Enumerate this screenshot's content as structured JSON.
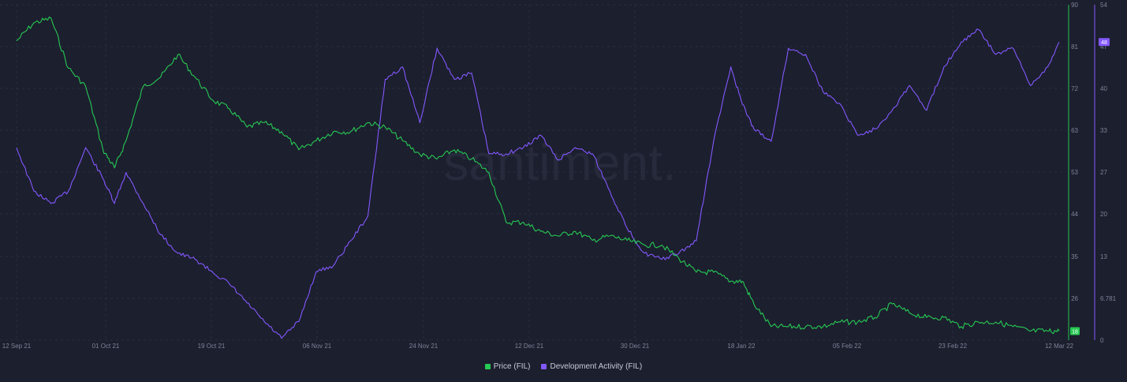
{
  "chart_data": {
    "type": "line",
    "watermark": "santiment.",
    "x_ticks": [
      "12 Sep 21",
      "01 Oct 21",
      "19 Oct 21",
      "06 Nov 21",
      "24 Nov 21",
      "12 Dec 21",
      "30 Dec 21",
      "18 Jan 22",
      "05 Feb 22",
      "23 Feb 22",
      "12 Mar 22"
    ],
    "price_axis": {
      "ticks": [
        "90",
        "81",
        "72",
        "63",
        "53",
        "44",
        "35",
        "26",
        "18"
      ],
      "ylim": [
        16,
        90
      ],
      "current_label": "18"
    },
    "dev_axis": {
      "ticks": [
        "54",
        "47",
        "40",
        "33",
        "27",
        "20",
        "13",
        "6.781",
        "0"
      ],
      "ylim": [
        0,
        54
      ],
      "current_label": "48"
    },
    "series": [
      {
        "name": "Price (FIL)",
        "color": "#26c953",
        "x": [
          "12 Sep 21",
          "15 Sep 21",
          "18 Sep 21",
          "21 Sep 21",
          "24 Sep 21",
          "27 Sep 21",
          "29 Sep 21",
          "01 Oct 21",
          "04 Oct 21",
          "07 Oct 21",
          "10 Oct 21",
          "13 Oct 21",
          "16 Oct 21",
          "19 Oct 21",
          "22 Oct 21",
          "25 Oct 21",
          "28 Oct 21",
          "31 Oct 21",
          "03 Nov 21",
          "06 Nov 21",
          "09 Nov 21",
          "12 Nov 21",
          "15 Nov 21",
          "18 Nov 21",
          "21 Nov 21",
          "24 Nov 21",
          "27 Nov 21",
          "30 Nov 21",
          "03 Dec 21",
          "06 Dec 21",
          "09 Dec 21",
          "12 Dec 21",
          "15 Dec 21",
          "18 Dec 21",
          "21 Dec 21",
          "24 Dec 21",
          "27 Dec 21",
          "30 Dec 21",
          "02 Jan 22",
          "05 Jan 22",
          "08 Jan 22",
          "11 Jan 22",
          "14 Jan 22",
          "16 Jan 22",
          "18 Jan 22",
          "21 Jan 22",
          "24 Jan 22",
          "27 Jan 22",
          "30 Jan 22",
          "02 Feb 22",
          "05 Feb 22",
          "08 Feb 22",
          "11 Feb 22",
          "14 Feb 22",
          "17 Feb 22",
          "20 Feb 22",
          "23 Feb 22",
          "26 Feb 22",
          "01 Mar 22",
          "04 Mar 22",
          "07 Mar 22",
          "10 Mar 22",
          "12 Mar 22"
        ],
        "values": [
          82,
          86,
          87,
          76,
          72,
          58,
          54,
          60,
          72,
          74,
          79,
          74,
          69,
          67,
          63,
          64,
          62,
          58,
          60,
          62,
          62,
          64,
          63,
          60,
          57,
          56,
          58,
          56,
          53,
          42,
          42,
          40,
          39,
          40,
          38,
          39,
          38,
          37,
          37,
          34,
          31,
          31,
          29,
          29,
          24,
          19,
          19,
          19,
          19,
          20,
          20,
          21,
          24,
          22,
          21,
          21,
          19,
          20,
          20,
          19,
          18,
          18,
          18
        ]
      },
      {
        "name": "Development Activity (FIL)",
        "color": "#8358ff",
        "x": [
          "12 Sep 21",
          "15 Sep 21",
          "18 Sep 21",
          "21 Sep 21",
          "24 Sep 21",
          "27 Sep 21",
          "29 Sep 21",
          "01 Oct 21",
          "04 Oct 21",
          "07 Oct 21",
          "10 Oct 21",
          "13 Oct 21",
          "16 Oct 21",
          "19 Oct 21",
          "22 Oct 21",
          "25 Oct 21",
          "28 Oct 21",
          "31 Oct 21",
          "03 Nov 21",
          "06 Nov 21",
          "09 Nov 21",
          "12 Nov 21",
          "15 Nov 21",
          "18 Nov 21",
          "21 Nov 21",
          "24 Nov 21",
          "27 Nov 21",
          "30 Nov 21",
          "03 Dec 21",
          "06 Dec 21",
          "09 Dec 21",
          "12 Dec 21",
          "15 Dec 21",
          "18 Dec 21",
          "21 Dec 21",
          "24 Dec 21",
          "27 Dec 21",
          "30 Dec 21",
          "02 Jan 22",
          "05 Jan 22",
          "08 Jan 22",
          "11 Jan 22",
          "14 Jan 22",
          "16 Jan 22",
          "18 Jan 22",
          "21 Jan 22",
          "24 Jan 22",
          "27 Jan 22",
          "30 Jan 22",
          "02 Feb 22",
          "05 Feb 22",
          "08 Feb 22",
          "11 Feb 22",
          "14 Feb 22",
          "17 Feb 22",
          "20 Feb 22",
          "23 Feb 22",
          "26 Feb 22",
          "01 Mar 22",
          "04 Mar 22",
          "07 Mar 22",
          "10 Mar 22",
          "12 Mar 22"
        ],
        "values": [
          31,
          24,
          22,
          24,
          31,
          26,
          22,
          27,
          22,
          17,
          14,
          13,
          11,
          9,
          6,
          3,
          0.3,
          3,
          11,
          12,
          16,
          20,
          42,
          44,
          35,
          47,
          42,
          43,
          30,
          30,
          31,
          33,
          29,
          31,
          30,
          24,
          18,
          14,
          13,
          14,
          16,
          32,
          44,
          38,
          34,
          32,
          47,
          46,
          40,
          38,
          33,
          34,
          37,
          41,
          37,
          44,
          48,
          50,
          46,
          47,
          41,
          44,
          48
        ]
      }
    ]
  },
  "legend": [
    {
      "label": "Price (FIL)",
      "color": "#26c953"
    },
    {
      "label": "Development Activity (FIL)",
      "color": "#8358ff"
    }
  ]
}
